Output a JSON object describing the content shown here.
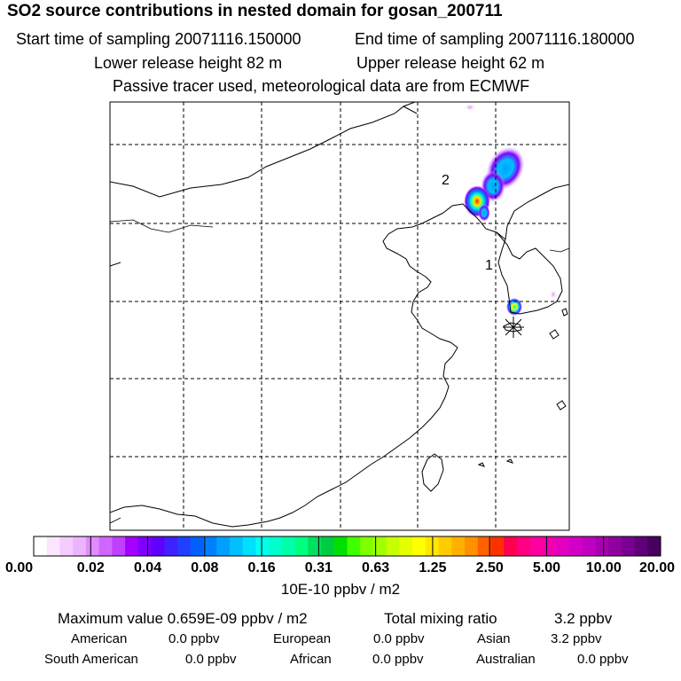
{
  "header": {
    "title": "SO2 source contributions in nested domain for gosan_200711",
    "start_label": "Start time of sampling 20071116.150000",
    "end_label": "End time of sampling 20071116.180000",
    "lower_label": "Lower release height   82 m",
    "upper_label": "Upper release height   62 m",
    "note": "Passive tracer used, meteorological data are from ECMWF"
  },
  "map": {
    "source_labels": [
      "1",
      "2"
    ],
    "receptor_marker": "gosan-station"
  },
  "colorbar": {
    "tick_labels": [
      "0.00",
      "0.02",
      "0.04",
      "0.08",
      "0.16",
      "0.31",
      "0.63",
      "1.25",
      "2.50",
      "5.00",
      "10.00",
      "20.00"
    ],
    "colors": [
      "#ffffff",
      "#fbe6ff",
      "#f4ccff",
      "#ecb3ff",
      "#e08cff",
      "#d066ff",
      "#bf40ff",
      "#a300ff",
      "#7f00ff",
      "#6000ff",
      "#4020ff",
      "#2040ff",
      "#0060ff",
      "#0080ff",
      "#00a0ff",
      "#00c0ff",
      "#00e0ff",
      "#00ffee",
      "#00ffcc",
      "#00ffaa",
      "#00ff80",
      "#00e060",
      "#00cc40",
      "#00e000",
      "#40ff00",
      "#80ff00",
      "#a0ff00",
      "#c8ff00",
      "#e6ff00",
      "#ffff00",
      "#ffe600",
      "#ffcc00",
      "#ffb000",
      "#ff9000",
      "#ff6000",
      "#ff3000",
      "#ff0050",
      "#ff0080",
      "#ff00a0",
      "#f000b0",
      "#e000c0",
      "#d000c8",
      "#c000c0",
      "#a800b0",
      "#9000a0",
      "#780090",
      "#600078",
      "#480060"
    ],
    "unit": "10E-10 ppbv / m2"
  },
  "footer": {
    "max_label": "Maximum value  0.659E-09 ppbv / m2",
    "total_label": "Total mixing ratio",
    "total_value": "3.2 ppbv",
    "rows": [
      [
        {
          "name": "American",
          "value": "0.0 ppbv"
        },
        {
          "name": "European",
          "value": "0.0 ppbv"
        },
        {
          "name": "Asian",
          "value": "3.2 ppbv"
        }
      ],
      [
        {
          "name": "South American",
          "value": "0.0 ppbv"
        },
        {
          "name": "African",
          "value": "0.0 ppbv"
        },
        {
          "name": "Australian",
          "value": "0.0 ppbv"
        }
      ]
    ]
  }
}
